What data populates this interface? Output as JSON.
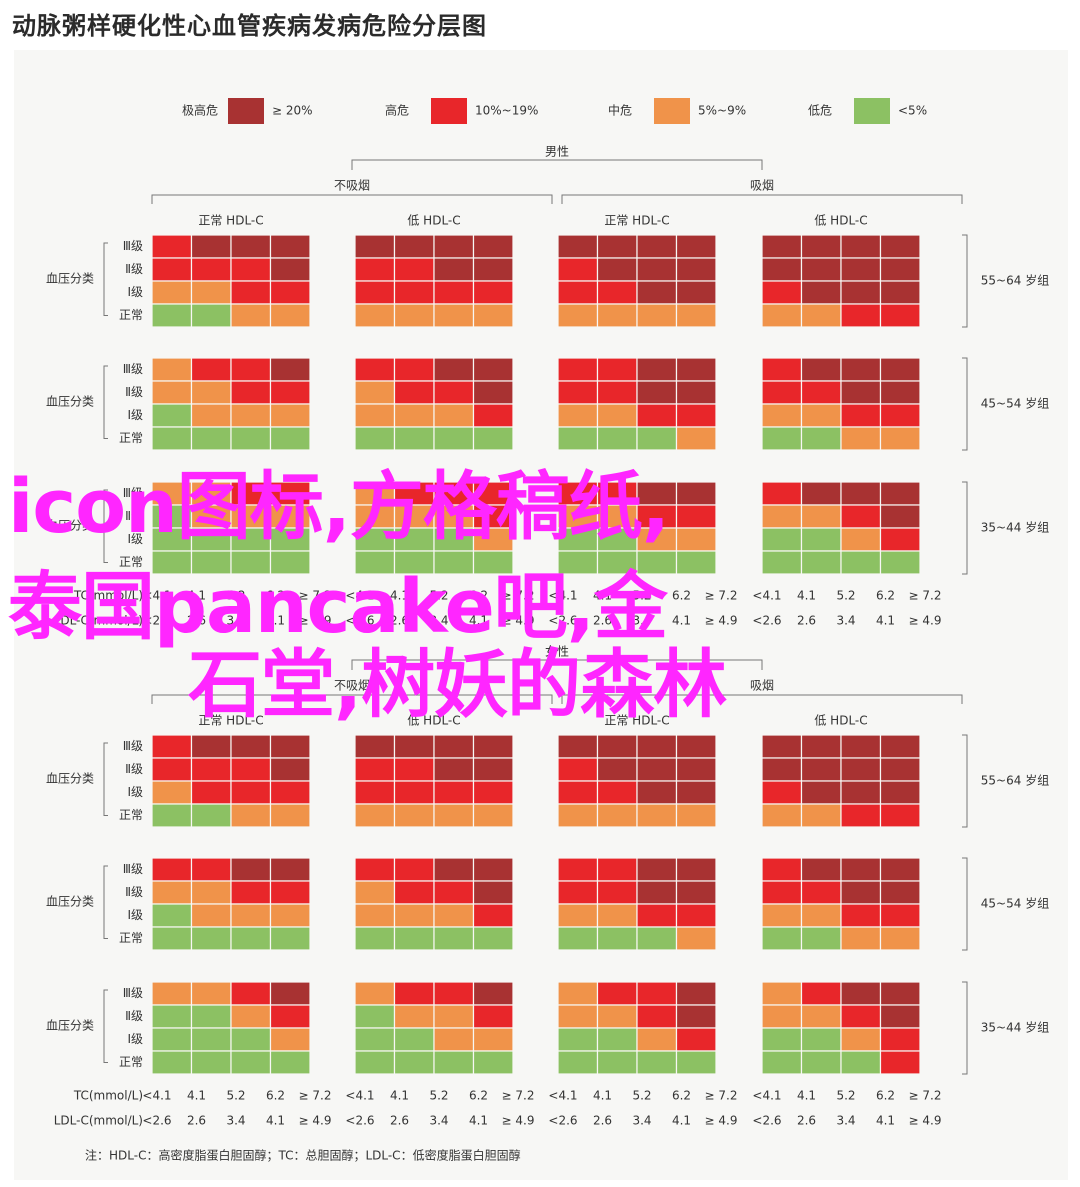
{
  "title": "动脉粥样硬化性心血管疾病发病危险分层图",
  "colors": {
    "very_high": "#a83232",
    "high": "#e8262a",
    "medium": "#f0934a",
    "low": "#8cc163"
  },
  "chart_data": {
    "type": "heatmap",
    "title": "动脉粥样硬化性心血管疾病发病危险分层图",
    "legend": [
      {
        "label": "极高危",
        "range": "≥ 20%",
        "level": 4
      },
      {
        "label": "高危",
        "range": "10%~19%",
        "level": 3
      },
      {
        "label": "中危",
        "range": "5%~9%",
        "level": 2
      },
      {
        "label": "低危",
        "range": "<5%",
        "level": 1
      }
    ],
    "row_axis_label": "血压分类",
    "row_labels": [
      "Ⅲ级",
      "Ⅱ级",
      "Ⅰ级",
      "正常"
    ],
    "smoking_labels": [
      "不吸烟",
      "吸烟"
    ],
    "hdl_labels": [
      "正常 HDL-C",
      "低 HDL-C"
    ],
    "tc_label": "TC(mmol/L)",
    "ldl_label": "LDL-C(mmol/L)",
    "tc_ticks": [
      "<4.1",
      "4.1",
      "5.2",
      "6.2",
      "≥ 7.2"
    ],
    "ldl_ticks": [
      "<2.6",
      "2.6",
      "3.4",
      "4.1",
      "≥ 4.9"
    ],
    "footnote": "注：HDL-C：高密度脂蛋白胆固醇；TC：总胆固醇；LDL-C：低密度脂蛋白胆固醇",
    "sections": [
      {
        "sex": "男性",
        "blocks": [
          {
            "age": "55~64 岁组",
            "grid": [
              [
                3,
                4,
                4,
                4,
                4,
                4,
                4,
                4,
                4,
                4,
                4,
                4,
                4,
                4,
                4,
                4
              ],
              [
                3,
                3,
                3,
                4,
                3,
                3,
                4,
                4,
                3,
                4,
                4,
                4,
                4,
                4,
                4,
                4
              ],
              [
                2,
                2,
                3,
                3,
                3,
                3,
                3,
                3,
                3,
                3,
                4,
                4,
                3,
                4,
                4,
                4
              ],
              [
                1,
                1,
                2,
                2,
                2,
                2,
                2,
                2,
                2,
                2,
                2,
                2,
                2,
                2,
                3,
                3
              ]
            ]
          },
          {
            "age": "45~54 岁组",
            "grid": [
              [
                2,
                3,
                3,
                4,
                3,
                3,
                4,
                4,
                3,
                3,
                4,
                4,
                3,
                4,
                4,
                4
              ],
              [
                2,
                2,
                3,
                3,
                2,
                3,
                3,
                4,
                3,
                3,
                4,
                4,
                3,
                3,
                4,
                4
              ],
              [
                1,
                2,
                2,
                2,
                2,
                2,
                2,
                3,
                2,
                2,
                3,
                3,
                2,
                2,
                3,
                3
              ],
              [
                1,
                1,
                1,
                1,
                1,
                1,
                1,
                1,
                1,
                1,
                1,
                2,
                1,
                1,
                2,
                2
              ]
            ]
          },
          {
            "age": "35~44 岁组",
            "grid": [
              [
                2,
                2,
                3,
                3,
                2,
                3,
                3,
                3,
                3,
                3,
                4,
                4,
                3,
                4,
                4,
                4
              ],
              [
                1,
                2,
                2,
                2,
                2,
                2,
                2,
                3,
                2,
                2,
                3,
                3,
                2,
                2,
                3,
                4
              ],
              [
                1,
                1,
                1,
                1,
                1,
                1,
                1,
                2,
                1,
                1,
                2,
                2,
                1,
                1,
                2,
                3
              ],
              [
                1,
                1,
                1,
                1,
                1,
                1,
                1,
                1,
                1,
                1,
                1,
                1,
                1,
                1,
                1,
                1
              ]
            ]
          }
        ]
      },
      {
        "sex": "女性",
        "blocks": [
          {
            "age": "55~64 岁组",
            "grid": [
              [
                3,
                4,
                4,
                4,
                4,
                4,
                4,
                4,
                4,
                4,
                4,
                4,
                4,
                4,
                4,
                4
              ],
              [
                3,
                3,
                3,
                4,
                3,
                3,
                4,
                4,
                3,
                4,
                4,
                4,
                4,
                4,
                4,
                4
              ],
              [
                2,
                3,
                3,
                3,
                3,
                3,
                3,
                3,
                3,
                3,
                4,
                4,
                3,
                4,
                4,
                4
              ],
              [
                1,
                1,
                2,
                2,
                2,
                2,
                2,
                2,
                2,
                2,
                2,
                2,
                2,
                2,
                3,
                3
              ]
            ]
          },
          {
            "age": "45~54 岁组",
            "grid": [
              [
                3,
                3,
                4,
                4,
                3,
                3,
                4,
                4,
                3,
                3,
                4,
                4,
                3,
                4,
                4,
                4
              ],
              [
                2,
                2,
                3,
                3,
                2,
                3,
                3,
                4,
                3,
                3,
                4,
                4,
                3,
                3,
                4,
                4
              ],
              [
                1,
                2,
                2,
                2,
                2,
                2,
                2,
                3,
                2,
                2,
                3,
                3,
                2,
                2,
                3,
                3
              ],
              [
                1,
                1,
                1,
                1,
                1,
                1,
                1,
                1,
                1,
                1,
                1,
                2,
                1,
                1,
                2,
                2
              ]
            ]
          },
          {
            "age": "35~44 岁组",
            "grid": [
              [
                2,
                2,
                3,
                4,
                2,
                3,
                3,
                4,
                2,
                3,
                3,
                4,
                2,
                3,
                4,
                4
              ],
              [
                1,
                1,
                2,
                3,
                1,
                2,
                2,
                3,
                2,
                2,
                3,
                4,
                2,
                2,
                3,
                4
              ],
              [
                1,
                1,
                1,
                2,
                1,
                1,
                2,
                2,
                1,
                1,
                2,
                3,
                1,
                1,
                2,
                3
              ],
              [
                1,
                1,
                1,
                1,
                1,
                1,
                1,
                1,
                1,
                1,
                1,
                1,
                1,
                1,
                1,
                3
              ]
            ]
          }
        ]
      }
    ]
  },
  "watermark": {
    "line1": "icon图标,方格稿纸,",
    "line2": "泰国pancake吧,金",
    "line3": "石堂,树妖的森林"
  }
}
